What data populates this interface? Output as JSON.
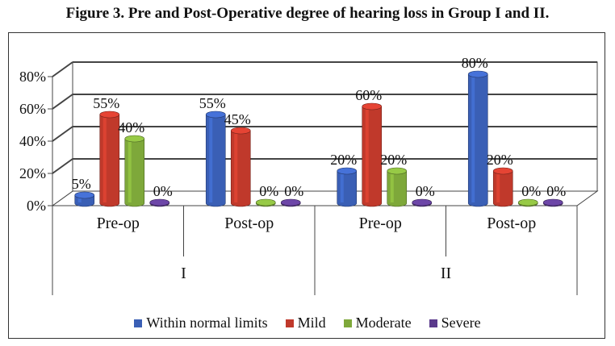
{
  "figure": {
    "title": "Figure 3. Pre and Post-Operative degree of hearing loss in Group I and II."
  },
  "chart_data": {
    "type": "bar",
    "title": "",
    "xlabel": "",
    "ylabel": "",
    "ylim": [
      0,
      80
    ],
    "y_ticks": [
      "0%",
      "20%",
      "40%",
      "60%",
      "80%"
    ],
    "categories": [
      "Pre-op",
      "Post-op",
      "Pre-op",
      "Post-op"
    ],
    "groups": [
      {
        "label": "I",
        "categories": [
          "Pre-op",
          "Post-op"
        ]
      },
      {
        "label": "II",
        "categories": [
          "Pre-op",
          "Post-op"
        ]
      }
    ],
    "series": [
      {
        "name": "Within normal limits",
        "color": "#3a5fb5",
        "values": [
          5,
          55,
          20,
          80
        ],
        "labels": [
          "5%",
          "55%",
          "20%",
          "80%"
        ]
      },
      {
        "name": "Mild",
        "color": "#c0392b",
        "values": [
          55,
          45,
          60,
          20
        ],
        "labels": [
          "55%",
          "45%",
          "60%",
          "20%"
        ]
      },
      {
        "name": "Moderate",
        "color": "#7ea83a",
        "values": [
          40,
          0,
          20,
          0
        ],
        "labels": [
          "40%",
          "0%",
          "20%",
          "0%"
        ]
      },
      {
        "name": "Severe",
        "color": "#5b3a8c",
        "values": [
          0,
          0,
          0,
          0
        ],
        "labels": [
          "0%",
          "0%",
          "0%",
          "0%"
        ]
      }
    ],
    "grid": true,
    "legend": "bottom"
  }
}
